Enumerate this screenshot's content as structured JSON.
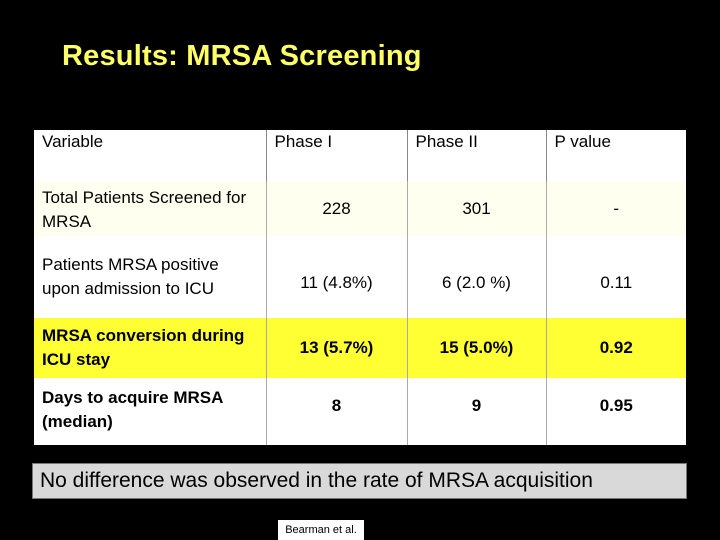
{
  "title": "Results: MRSA Screening",
  "table": {
    "headers": [
      "Variable",
      "Phase I",
      "Phase II",
      "P value"
    ],
    "rows": [
      {
        "variable": "Total Patients Screened for MRSA",
        "phase1": "228",
        "phase2": "301",
        "pvalue": "-"
      },
      {
        "variable": "Patients MRSA positive upon admission to ICU",
        "phase1": "11 (4.8%)",
        "phase2": "6 (2.0 %)",
        "pvalue": "0.11"
      },
      {
        "variable": "MRSA conversion during ICU stay",
        "phase1": "13 (5.7%)",
        "phase2": "15 (5.0%)",
        "pvalue": "0.92"
      },
      {
        "variable": "Days to acquire MRSA (median)",
        "phase1": "8",
        "phase2": "9",
        "pvalue": "0.95"
      }
    ]
  },
  "conclusion": "No difference was observed in the rate of MRSA  acquisition",
  "citation": "Bearman et al."
}
